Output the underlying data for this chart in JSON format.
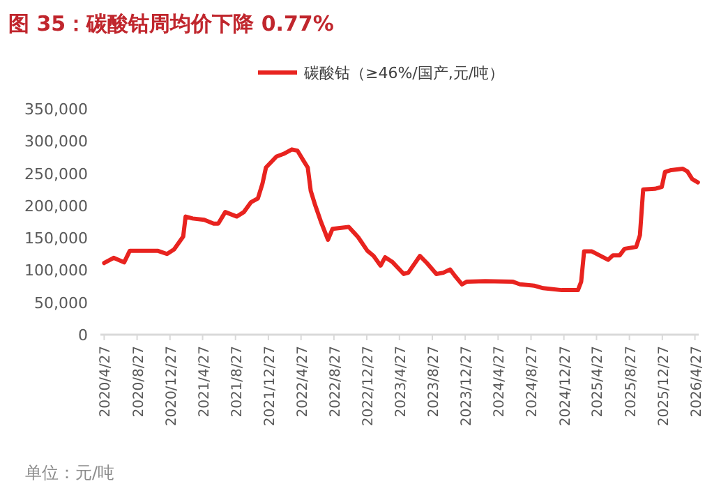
{
  "chart_data": {
    "type": "line",
    "title": "图 35：碳酸钴周均价下降 0.77%",
    "annotations": [
      "单位：元/吨"
    ],
    "legend": "top",
    "marker": "none",
    "line_style": "solid",
    "grid": false,
    "xlim": [
      "2020-04-13",
      "2026-05-11"
    ],
    "xticks": [
      {
        "value": "2020-04-27",
        "label": "2020/4/27"
      },
      {
        "value": "2020-08-27",
        "label": "2020/8/27"
      },
      {
        "value": "2020-12-27",
        "label": "2020/12/27"
      },
      {
        "value": "2021-04-27",
        "label": "2021/4/27"
      },
      {
        "value": "2021-08-27",
        "label": "2021/8/27"
      },
      {
        "value": "2021-12-27",
        "label": "2021/12/27"
      },
      {
        "value": "2022-04-27",
        "label": "2022/4/27"
      },
      {
        "value": "2022-08-27",
        "label": "2022/8/27"
      },
      {
        "value": "2022-12-27",
        "label": "2022/12/27"
      },
      {
        "value": "2023-04-27",
        "label": "2023/4/27"
      },
      {
        "value": "2023-08-27",
        "label": "2023/8/27"
      },
      {
        "value": "2023-12-27",
        "label": "2023/12/27"
      },
      {
        "value": "2024-04-27",
        "label": "2024/4/27"
      },
      {
        "value": "2024-08-27",
        "label": "2024/8/27"
      },
      {
        "value": "2024-12-27",
        "label": "2024/12/27"
      },
      {
        "value": "2025-04-27",
        "label": "2025/4/27"
      },
      {
        "value": "2025-08-27",
        "label": "2025/8/27"
      },
      {
        "value": "2025-12-27",
        "label": "2025/12/27"
      },
      {
        "value": "2026-04-27",
        "label": "2026/4/27"
      }
    ],
    "ylim": [
      0,
      350000
    ],
    "yticks": [
      {
        "value": 0,
        "label": "0"
      },
      {
        "value": 50000,
        "label": "50,000"
      },
      {
        "value": 100000,
        "label": "100,000"
      },
      {
        "value": 150000,
        "label": "150,000"
      },
      {
        "value": 200000,
        "label": "200,000"
      },
      {
        "value": 250000,
        "label": "250,000"
      },
      {
        "value": 300000,
        "label": "300,000"
      },
      {
        "value": 350000,
        "label": "350,000"
      }
    ],
    "x": [
      "2020-04-27",
      "2020-06-01",
      "2020-07-10",
      "2020-07-31",
      "2020-11-11",
      "2020-12-16",
      "2021-01-11",
      "2021-02-14",
      "2021-02-23",
      "2021-03-21",
      "2021-05-03",
      "2021-06-07",
      "2021-06-24",
      "2021-07-20",
      "2021-09-01",
      "2021-09-27",
      "2021-10-23",
      "2021-11-18",
      "2021-12-05",
      "2021-12-18",
      "2022-01-26",
      "2022-02-21",
      "2022-03-24",
      "2022-04-14",
      "2022-05-10",
      "2022-05-22",
      "2022-06-02",
      "2022-06-19",
      "2022-07-09",
      "2022-08-05",
      "2022-08-22",
      "2022-10-21",
      "2022-11-25",
      "2022-12-29",
      "2023-01-21",
      "2023-02-16",
      "2023-03-05",
      "2023-03-31",
      "2023-05-13",
      "2023-05-30",
      "2023-07-12",
      "2023-08-07",
      "2023-09-11",
      "2023-10-07",
      "2023-11-01",
      "2023-11-19",
      "2023-12-15",
      "2024-01-01",
      "2024-03-10",
      "2024-06-21",
      "2024-07-17",
      "2024-09-07",
      "2024-10-11",
      "2024-12-19",
      "2025-02-17",
      "2025-03-01",
      "2025-03-12",
      "2025-04-10",
      "2025-06-09",
      "2025-06-27",
      "2025-07-22",
      "2025-08-09",
      "2025-09-21",
      "2025-10-05",
      "2025-10-17",
      "2025-11-29",
      "2025-12-25",
      "2026-01-06",
      "2026-01-29",
      "2026-03-13",
      "2026-03-30",
      "2026-04-17",
      "2026-05-08"
    ],
    "series": [
      {
        "name": "碳酸钴（≥46%/国产,元/吨）",
        "color": "#e8231f",
        "values": [
          111000,
          119000,
          112000,
          130000,
          130000,
          125000,
          132000,
          152000,
          183000,
          180000,
          178000,
          172000,
          172000,
          190000,
          183000,
          190000,
          205000,
          211000,
          234000,
          259000,
          276000,
          280000,
          287000,
          285000,
          267000,
          259000,
          223000,
          200000,
          176000,
          147000,
          164000,
          167000,
          151000,
          130000,
          122000,
          107000,
          120000,
          113000,
          94000,
          96000,
          122000,
          111000,
          94000,
          96000,
          101000,
          91000,
          78000,
          82000,
          83000,
          82000,
          78000,
          76000,
          72000,
          69000,
          69000,
          82000,
          129000,
          129000,
          116000,
          123000,
          123000,
          133000,
          136000,
          154000,
          225000,
          226000,
          229000,
          252000,
          255000,
          257000,
          253000,
          241000,
          236000
        ]
      }
    ]
  }
}
